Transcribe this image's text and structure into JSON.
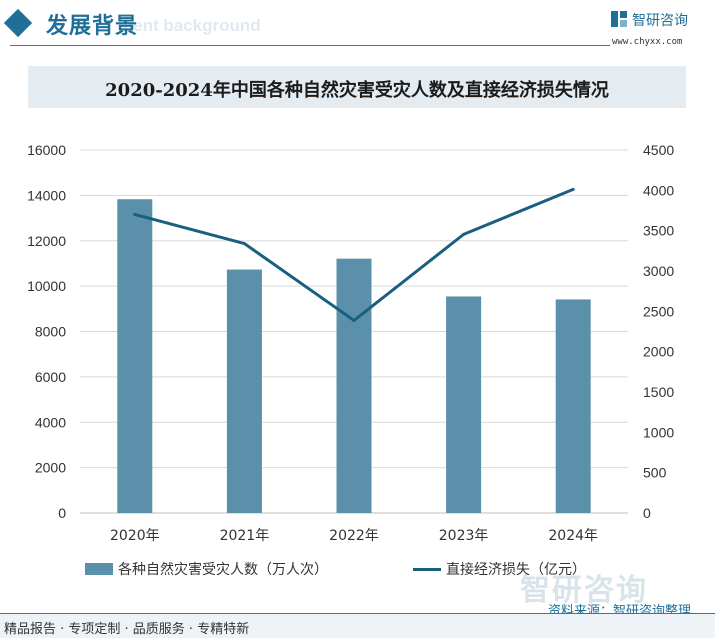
{
  "header": {
    "title": "发展背景",
    "subtitle": "ment background"
  },
  "logo": {
    "name": "智研咨询",
    "url": "www.chyxx.com"
  },
  "watermark": {
    "brand": "智研咨询"
  },
  "chart_data": {
    "type": "bar",
    "title": "2020-2024年中国各种自然灾害受灾人数及直接经济损失情况",
    "categories": [
      "2020年",
      "2021年",
      "2022年",
      "2023年",
      "2024年"
    ],
    "series": [
      {
        "name": "各种自然灾害受灾人数（万人次）",
        "type": "bar",
        "axis": "left",
        "values": [
          13829,
          10731,
          11210,
          9544,
          9413
        ]
      },
      {
        "name": "直接经济损失（亿元）",
        "type": "line",
        "axis": "right",
        "values": [
          3701,
          3340,
          2387,
          3454,
          4012
        ]
      }
    ],
    "y_left": {
      "ylim": [
        0,
        16000
      ],
      "ticks": [
        "0",
        "2000",
        "4000",
        "6000",
        "8000",
        "10000",
        "12000",
        "14000",
        "16000"
      ]
    },
    "y_right": {
      "ylim": [
        0,
        4500
      ],
      "ticks": [
        "0",
        "500",
        "1000",
        "1500",
        "2000",
        "2500",
        "3000",
        "3500",
        "4000",
        "4500"
      ]
    },
    "grid": true,
    "legend_position": "bottom",
    "colors": {
      "bar": "#5b90aa",
      "line": "#1a5f80",
      "grid": "#d9d9d9"
    }
  },
  "footer": {
    "tags": "精品报告 · 专项定制 · 品质服务 · 专精特新",
    "source": "资料来源：智研咨询整理"
  }
}
